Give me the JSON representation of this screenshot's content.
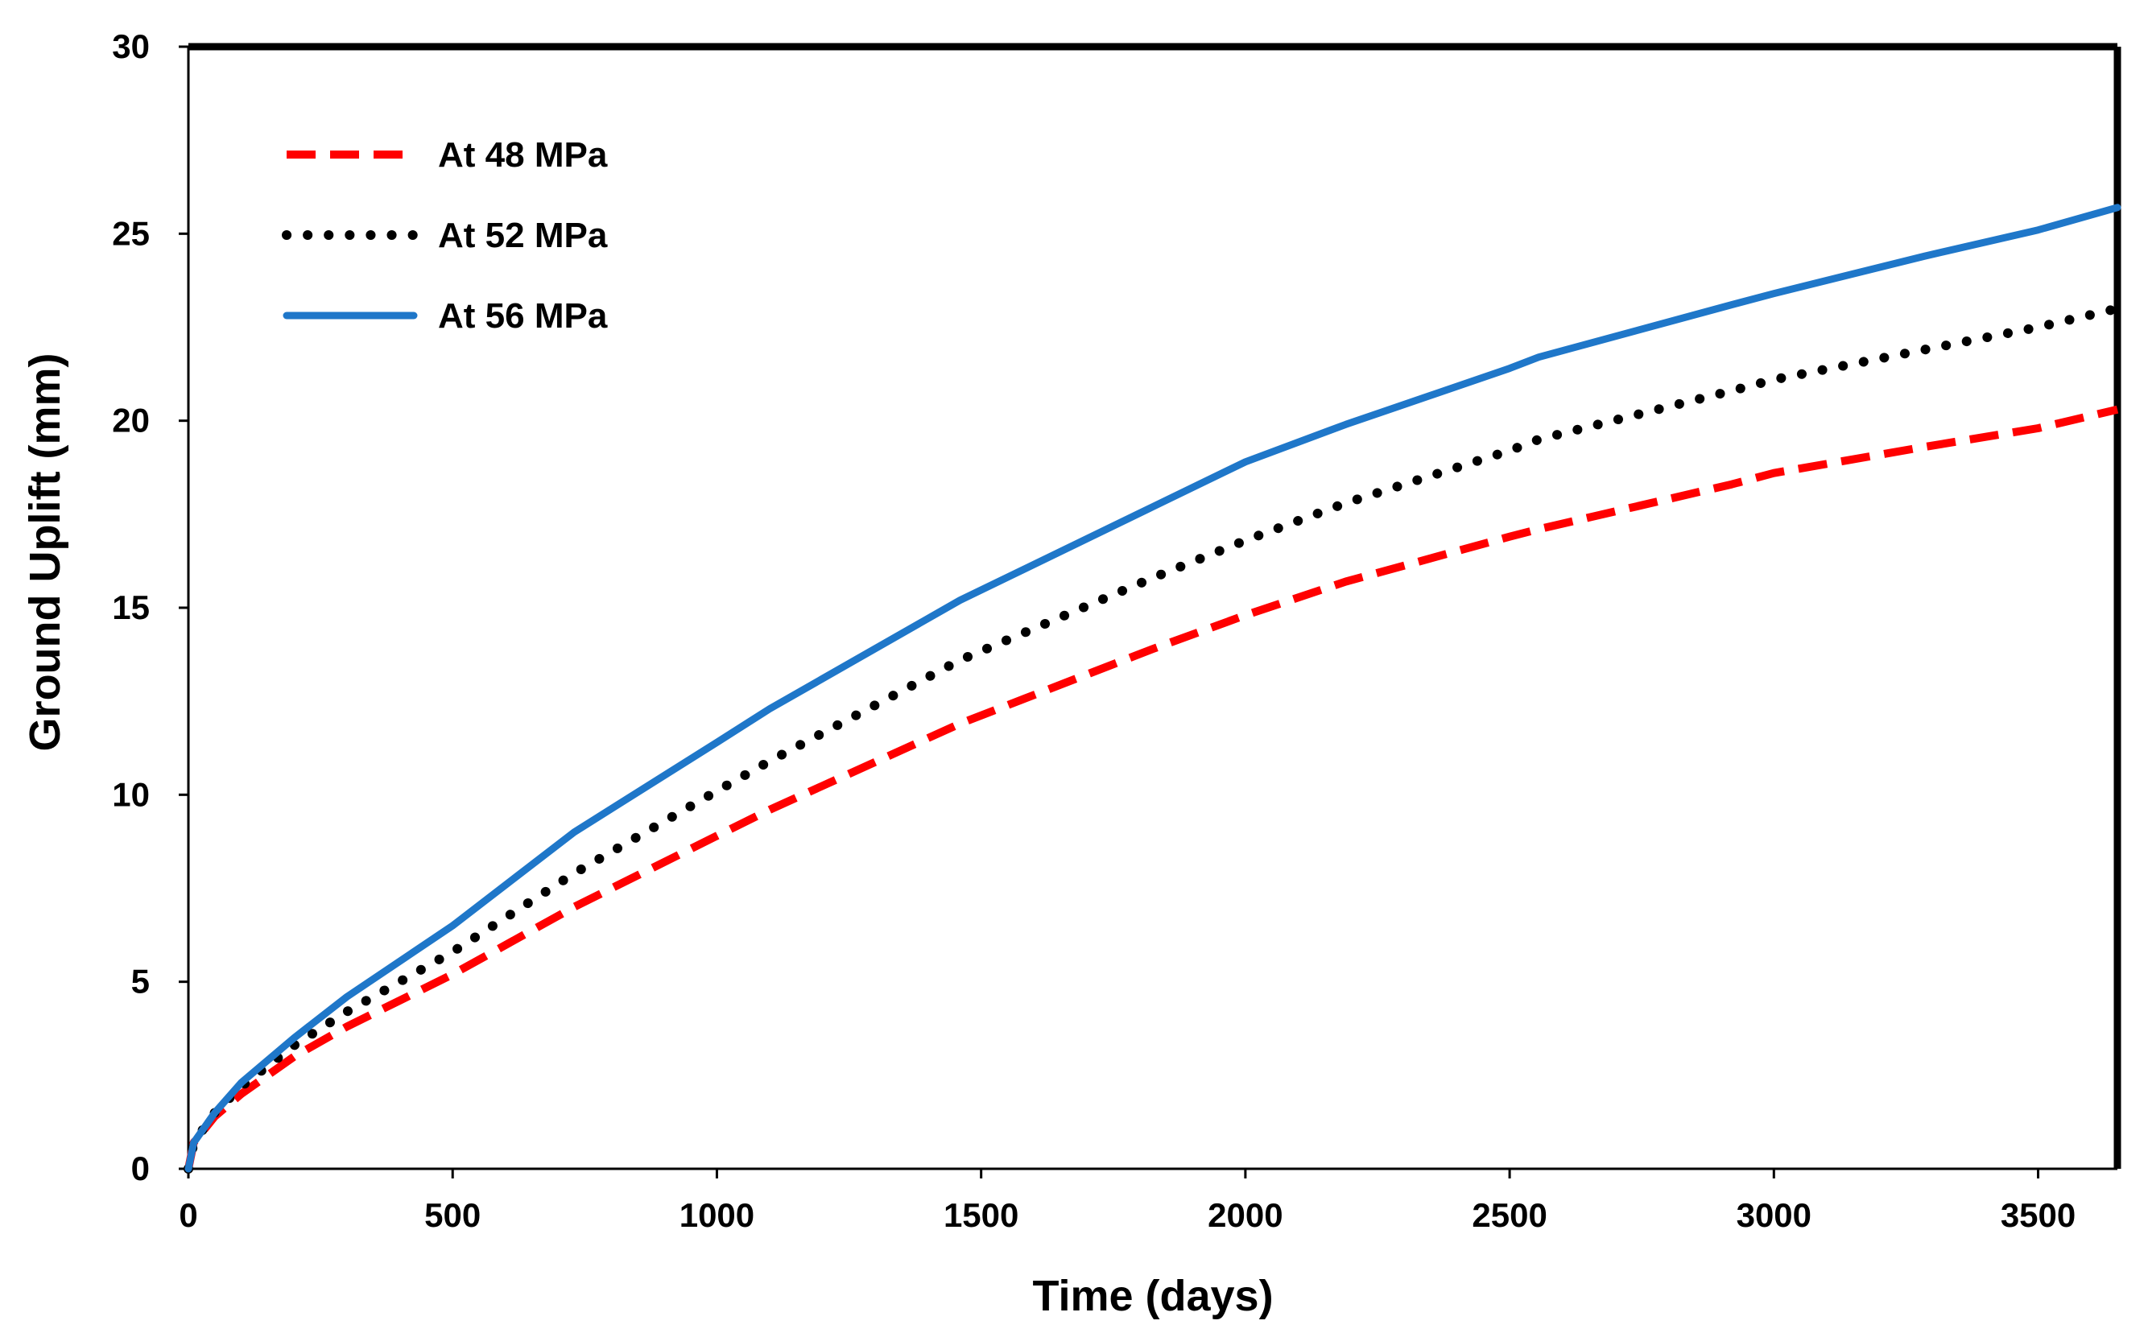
{
  "chart_data": {
    "type": "line",
    "title": "",
    "xlabel": "Time (days)",
    "ylabel": "Ground Uplift (mm)",
    "xlim": [
      0,
      3650
    ],
    "ylim": [
      0,
      30
    ],
    "xticks": [
      0,
      500,
      1000,
      1500,
      2000,
      2500,
      3000,
      3500
    ],
    "yticks": [
      0,
      5,
      10,
      15,
      20,
      25,
      30
    ],
    "xtick_labels": [
      "0",
      "500",
      "1000",
      "1500",
      "2000",
      "2500",
      "3000",
      "3500"
    ],
    "ytick_labels": [
      "0",
      "5",
      "10",
      "15",
      "20",
      "25",
      "30"
    ],
    "grid": false,
    "legend_position": "top-left",
    "x": [
      0,
      10,
      50,
      100,
      200,
      300,
      500,
      730,
      1000,
      1100,
      1460,
      1825,
      2000,
      2190,
      2500,
      2555,
      2920,
      3000,
      3285,
      3500,
      3650
    ],
    "series": [
      {
        "name": "At 48 MPa",
        "color": "#ff0000",
        "style": "dashed",
        "values": [
          0.0,
          0.7,
          1.4,
          2.0,
          3.0,
          3.8,
          5.2,
          7.0,
          8.9,
          9.6,
          11.9,
          13.9,
          14.8,
          15.7,
          16.9,
          17.1,
          18.3,
          18.6,
          19.3,
          19.8,
          20.3
        ]
      },
      {
        "name": "At 52 MPa",
        "color": "#000000",
        "style": "dotted",
        "values": [
          0.0,
          0.7,
          1.5,
          2.2,
          3.3,
          4.2,
          5.8,
          7.9,
          10.1,
          10.9,
          13.6,
          15.8,
          16.8,
          17.8,
          19.2,
          19.5,
          20.8,
          21.1,
          21.9,
          22.5,
          23.0
        ]
      },
      {
        "name": "At 56 MPa",
        "color": "#1f77c9",
        "style": "solid",
        "values": [
          0.0,
          0.7,
          1.5,
          2.3,
          3.5,
          4.6,
          6.5,
          9.0,
          11.4,
          12.3,
          15.2,
          17.7,
          18.9,
          19.9,
          21.4,
          21.7,
          23.1,
          23.4,
          24.4,
          25.1,
          25.7
        ]
      }
    ]
  }
}
